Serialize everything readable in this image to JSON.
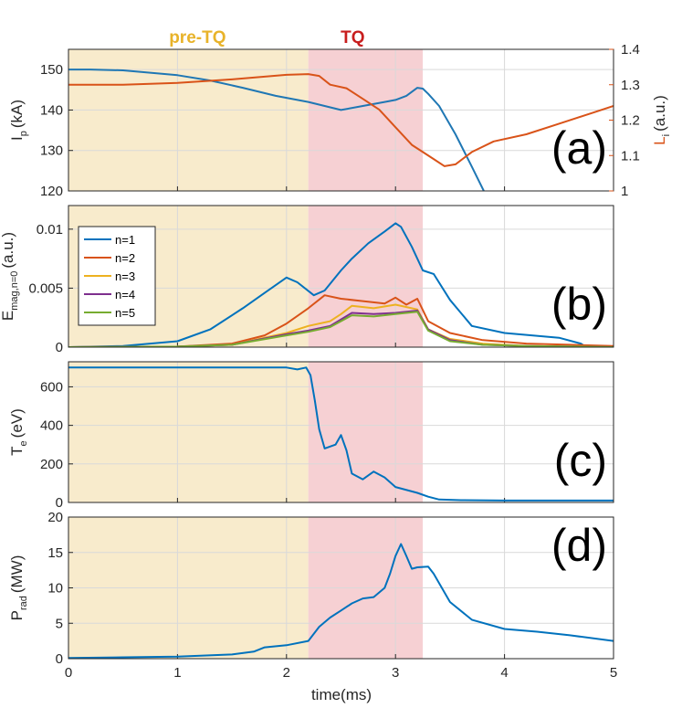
{
  "chart_data": {
    "type": "line",
    "colors": {
      "pre_tq_fill": "#f8ebcc",
      "tq_fill": "#f6d0d3",
      "pre_tq_text": "#e8b32a",
      "tq_text": "#c81e1e",
      "ip": "#1f77b4",
      "li": "#d95319",
      "n1": "#0072bd",
      "n2": "#d95319",
      "n3": "#edb120",
      "n4": "#7e2f8e",
      "n5": "#77ac30",
      "grid": "#d9d9d9",
      "axis": "#262626"
    },
    "phases": [
      {
        "name": "pre-TQ",
        "x0": 0,
        "x1": 2.2
      },
      {
        "name": "TQ",
        "x0": 2.2,
        "x1": 3.25
      }
    ],
    "xlabel": "time(ms)",
    "xlim": [
      0,
      5
    ],
    "xticks": [
      "0",
      "1",
      "2",
      "3",
      "4",
      "5"
    ],
    "panels": [
      {
        "tag": "(a)",
        "ylabel_main": "I",
        "ylabel_sub": "p",
        "ylabel_unit": "(kA)",
        "ylim": [
          120,
          155
        ],
        "yticks": [
          120,
          130,
          140,
          150
        ],
        "right_axis": {
          "ylabel_main": "L",
          "ylabel_sub": "i",
          "ylabel_unit": "(a.u.)",
          "ylim": [
            1.0,
            1.4
          ],
          "yticks": [
            "1",
            "1.1",
            "1.2",
            "1.3",
            "1.4"
          ]
        },
        "series": [
          {
            "name": "Ip",
            "axis": "left",
            "color_key": "ip",
            "x": [
              0,
              0.2,
              0.5,
              1.0,
              1.3,
              1.6,
              1.9,
              2.2,
              2.5,
              2.7,
              2.9,
              3.0,
              3.1,
              3.2,
              3.25,
              3.3,
              3.4,
              3.55,
              3.7,
              3.81
            ],
            "y": [
              150,
              150,
              149.8,
              148.6,
              147.3,
              145.5,
              143.5,
              142,
              140,
              141,
              142,
              142.5,
              143.5,
              145.5,
              145.3,
              144,
              141,
              134,
              126,
              120
            ]
          },
          {
            "name": "Li",
            "axis": "right",
            "color_key": "li",
            "x": [
              0,
              0.5,
              1.0,
              1.5,
              2.0,
              2.2,
              2.3,
              2.4,
              2.55,
              2.7,
              2.85,
              3.0,
              3.15,
              3.25,
              3.35,
              3.45,
              3.55,
              3.7,
              3.9,
              4.2,
              4.5,
              4.8,
              5.0
            ],
            "y": [
              1.3,
              1.3,
              1.305,
              1.315,
              1.328,
              1.33,
              1.325,
              1.3,
              1.29,
              1.26,
              1.23,
              1.18,
              1.13,
              1.11,
              1.09,
              1.07,
              1.075,
              1.11,
              1.14,
              1.16,
              1.19,
              1.22,
              1.24
            ]
          }
        ]
      },
      {
        "tag": "(b)",
        "ylabel_main": "E",
        "ylabel_sub": "mag,n=0",
        "ylabel_unit": "(a.u.)",
        "ylim": [
          0,
          0.012
        ],
        "yticks": [
          "0",
          "0.005",
          "0.01"
        ],
        "legend": [
          "n=1",
          "n=2",
          "n=3",
          "n=4",
          "n=5"
        ],
        "series": [
          {
            "name": "n=1",
            "color_key": "n1",
            "x": [
              0,
              0.5,
              1.0,
              1.3,
              1.6,
              1.8,
              2.0,
              2.1,
              2.25,
              2.35,
              2.5,
              2.6,
              2.75,
              2.9,
              3.0,
              3.05,
              3.15,
              3.25,
              3.35,
              3.5,
              3.7,
              4.0,
              4.5,
              4.7,
              4.75
            ],
            "y": [
              0,
              0.0001,
              0.0005,
              0.0015,
              0.0033,
              0.0046,
              0.0059,
              0.0055,
              0.0044,
              0.0048,
              0.0065,
              0.0075,
              0.0088,
              0.0098,
              0.0105,
              0.0102,
              0.0085,
              0.0065,
              0.0062,
              0.004,
              0.0018,
              0.0012,
              0.0008,
              0.0003,
              0
            ]
          },
          {
            "name": "n=2",
            "color_key": "n2",
            "x": [
              0,
              1.0,
              1.5,
              1.8,
              2.0,
              2.2,
              2.35,
              2.5,
              2.7,
              2.9,
              3.0,
              3.1,
              3.2,
              3.3,
              3.5,
              3.8,
              4.2,
              4.6,
              5.0
            ],
            "y": [
              0,
              5e-05,
              0.0003,
              0.001,
              0.002,
              0.0033,
              0.0044,
              0.0041,
              0.0039,
              0.0037,
              0.0042,
              0.0036,
              0.0041,
              0.0022,
              0.0012,
              0.0006,
              0.0003,
              0.0002,
              0.0001
            ]
          },
          {
            "name": "n=3",
            "color_key": "n3",
            "x": [
              0,
              1.0,
              1.5,
              2.0,
              2.2,
              2.4,
              2.5,
              2.6,
              2.8,
              3.0,
              3.2,
              3.3,
              3.5,
              3.8,
              4.2,
              5.0
            ],
            "y": [
              0,
              5e-05,
              0.0002,
              0.0012,
              0.0018,
              0.0022,
              0.0028,
              0.0035,
              0.0033,
              0.0036,
              0.0032,
              0.0015,
              0.0007,
              0.0003,
              0.0001,
              0
            ]
          },
          {
            "name": "n=4",
            "color_key": "n4",
            "x": [
              0,
              1.0,
              1.5,
              2.0,
              2.2,
              2.4,
              2.6,
              2.8,
              3.0,
              3.2,
              3.3,
              3.5,
              3.8,
              4.2,
              5.0
            ],
            "y": [
              0,
              5e-05,
              0.0002,
              0.0011,
              0.0014,
              0.0018,
              0.0029,
              0.0028,
              0.0029,
              0.0031,
              0.0015,
              0.0006,
              0.0002,
              0.0001,
              0
            ]
          },
          {
            "name": "n=5",
            "color_key": "n5",
            "x": [
              0,
              1.0,
              1.5,
              2.0,
              2.2,
              2.4,
              2.6,
              2.8,
              3.0,
              3.2,
              3.3,
              3.5,
              3.8,
              4.2,
              5.0
            ],
            "y": [
              0,
              5e-05,
              0.0002,
              0.001,
              0.0013,
              0.0017,
              0.0027,
              0.0026,
              0.0028,
              0.003,
              0.0014,
              0.0005,
              0.0002,
              0.0001,
              0
            ]
          }
        ]
      },
      {
        "tag": "(c)",
        "ylabel_main": "T",
        "ylabel_sub": "e",
        "ylabel_unit": "(eV)",
        "ylim": [
          0,
          730
        ],
        "yticks": [
          0,
          200,
          400,
          600
        ],
        "series": [
          {
            "name": "Te",
            "color_key": "n1",
            "x": [
              0,
              1.0,
              2.0,
              2.1,
              2.18,
              2.22,
              2.26,
              2.3,
              2.35,
              2.45,
              2.5,
              2.55,
              2.6,
              2.7,
              2.8,
              2.9,
              3.0,
              3.2,
              3.3,
              3.4,
              3.6,
              4.0,
              4.5,
              5.0
            ],
            "y": [
              700,
              700,
              700,
              690,
              700,
              660,
              530,
              380,
              280,
              300,
              350,
              270,
              150,
              120,
              160,
              130,
              80,
              50,
              30,
              15,
              12,
              10,
              10,
              10
            ]
          }
        ]
      },
      {
        "tag": "(d)",
        "ylabel_main": "P",
        "ylabel_sub": "rad",
        "ylabel_unit": "(MW)",
        "ylim": [
          0,
          20
        ],
        "yticks": [
          0,
          5,
          10,
          15,
          20
        ],
        "series": [
          {
            "name": "Prad",
            "color_key": "n1",
            "x": [
              0,
              0.5,
              1.0,
              1.5,
              1.7,
              1.8,
              2.0,
              2.2,
              2.3,
              2.4,
              2.5,
              2.6,
              2.7,
              2.8,
              2.9,
              2.95,
              3.0,
              3.05,
              3.1,
              3.15,
              3.2,
              3.3,
              3.35,
              3.5,
              3.7,
              4.0,
              4.3,
              4.6,
              5.0
            ],
            "y": [
              0.1,
              0.2,
              0.3,
              0.6,
              1.0,
              1.6,
              1.9,
              2.5,
              4.5,
              5.8,
              6.8,
              7.8,
              8.5,
              8.7,
              10,
              12,
              14.5,
              16.2,
              14.5,
              12.7,
              12.9,
              13,
              12,
              8,
              5.5,
              4.2,
              3.8,
              3.3,
              2.5
            ]
          }
        ]
      }
    ]
  }
}
